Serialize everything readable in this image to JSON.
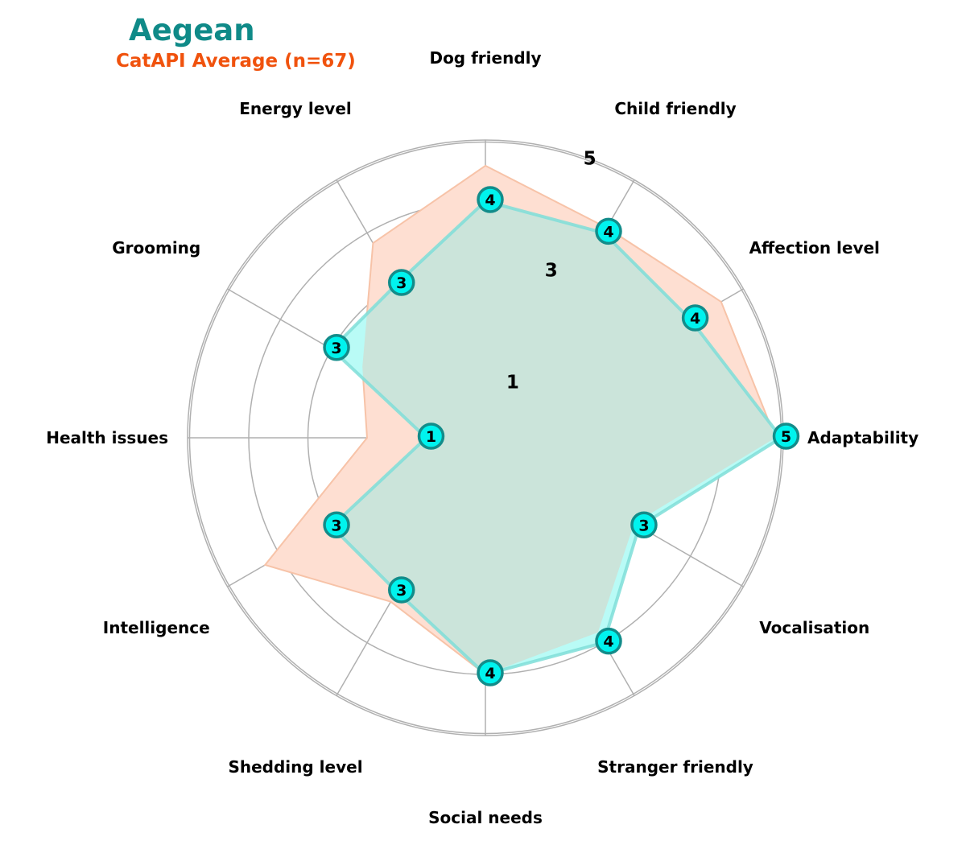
{
  "legend": {
    "primary_name": "Aegean",
    "reference_name": "CatAPI Average (n=67)"
  },
  "colors": {
    "primary_fill": "#b9fbf6",
    "primary_line": "#7fded8",
    "primary_marker": "#00f3ee",
    "primary_marker_edge": "#138c8a",
    "reference_fill": "#fedfd2",
    "reference_line": "#f7c3a8",
    "overlap": "#cbe4da",
    "title": "#0f8a88",
    "subtitle": "#f0520d",
    "grid": "#b0b0b0"
  },
  "chart_data": {
    "type": "radar",
    "categories": [
      "Adaptability",
      "Affection level",
      "Child friendly",
      "Dog friendly",
      "Energy level",
      "Grooming",
      "Health issues",
      "Intelligence",
      "Shedding level",
      "Social needs",
      "Stranger friendly",
      "Vocalisation"
    ],
    "series": [
      {
        "name": "Aegean",
        "values": [
          5,
          4,
          4,
          4,
          3,
          3,
          1,
          3,
          3,
          4,
          4,
          3
        ]
      },
      {
        "name": "CatAPI Average (n=67)",
        "values": [
          4.9,
          4.6,
          4.1,
          4.6,
          3.8,
          2.4,
          2.0,
          4.3,
          3.2,
          4.0,
          3.8,
          2.9
        ]
      }
    ],
    "rings": [
      1,
      2,
      3,
      4,
      5
    ],
    "ring_labels": [
      "1",
      "3",
      "5"
    ],
    "rlim": [
      0,
      5
    ],
    "grid": true,
    "legend_position": "top-left"
  }
}
